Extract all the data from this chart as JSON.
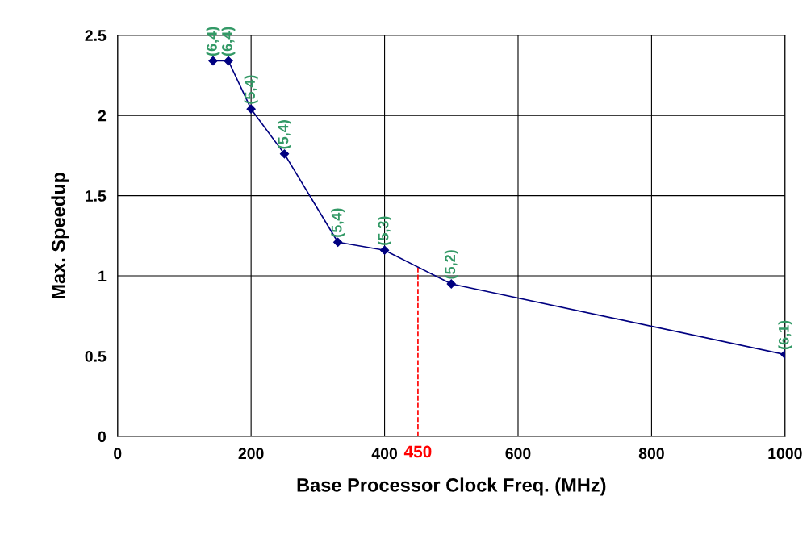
{
  "chart_data": {
    "type": "line",
    "xlabel": "Base Processor Clock Freq. (MHz)",
    "ylabel": "Max. Speedup",
    "x": [
      143,
      166,
      200,
      250,
      330,
      400,
      500,
      1000
    ],
    "series": [
      {
        "color": "#000080",
        "values": [
          2.34,
          2.34,
          2.04,
          1.76,
          1.21,
          1.16,
          0.95,
          0.51
        ]
      }
    ],
    "annotations": [
      {
        "text": "(6,4)",
        "x": 143,
        "y": 2.34
      },
      {
        "text": "(6,4)",
        "x": 166,
        "y": 2.34
      },
      {
        "text": "(5,4)",
        "x": 200,
        "y": 2.04
      },
      {
        "text": "(5,4)",
        "x": 250,
        "y": 1.76
      },
      {
        "text": "(5,4)",
        "x": 330,
        "y": 1.21
      },
      {
        "text": "(5,3)",
        "x": 400,
        "y": 1.16
      },
      {
        "text": "(5,2)",
        "x": 500,
        "y": 0.95
      },
      {
        "text": "(6,1)",
        "x": 1000,
        "y": 0.51
      }
    ],
    "xlim": [
      0,
      1000
    ],
    "xticks": [
      0,
      200,
      400,
      600,
      800,
      1000
    ],
    "ylim": [
      0,
      2.5
    ],
    "yticks": [
      0,
      0.5,
      1,
      1.5,
      2,
      2.5
    ],
    "ref_lines": [
      {
        "axis": "x",
        "value": 450,
        "label": "450",
        "color": "#ff0000",
        "line_style": "dashed"
      }
    ],
    "grid": true,
    "marker": "diamond",
    "line_style": "solid"
  }
}
